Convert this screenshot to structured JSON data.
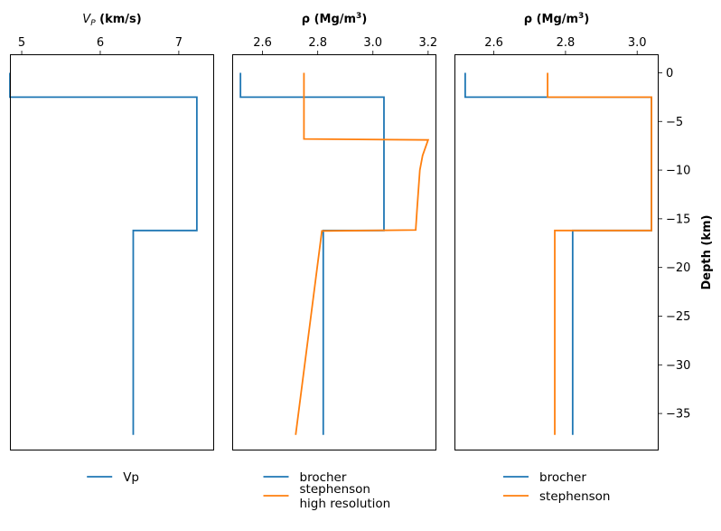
{
  "chart_data": [
    {
      "type": "line",
      "title_main": "V",
      "title_sub": "P",
      "title_rest": " (km/s)",
      "title_full": "V_P (km/s)",
      "xaxis_position": "top",
      "xlim": [
        4.85,
        7.45
      ],
      "ylim": [
        -38.8,
        1.9
      ],
      "xticks": [
        5,
        6,
        7
      ],
      "xtick_labels": [
        "5",
        "6",
        "7"
      ],
      "series": [
        {
          "name": "Vp",
          "color": "#1f77b4",
          "points": [
            [
              4.85,
              0
            ],
            [
              4.85,
              -2.5
            ],
            [
              7.23,
              -2.5
            ],
            [
              7.23,
              -16.2
            ],
            [
              6.42,
              -16.2
            ],
            [
              6.42,
              -37.2
            ]
          ]
        }
      ],
      "legend": {
        "placement": "below",
        "entries": [
          {
            "label": "Vp",
            "color": "#1f77b4"
          }
        ]
      }
    },
    {
      "type": "line",
      "title_main": "ρ (Mg/m",
      "title_sup": "3",
      "title_rest": ")",
      "title_full": "ρ (Mg/m^3)",
      "xaxis_position": "top",
      "xlim": [
        2.49,
        3.23
      ],
      "ylim": [
        -38.8,
        1.9
      ],
      "xticks": [
        2.6,
        2.8,
        3.0,
        3.2
      ],
      "xtick_labels": [
        "2.6",
        "2.8",
        "3.0",
        "3.2"
      ],
      "series": [
        {
          "name": "brocher",
          "color": "#1f77b4",
          "points": [
            [
              2.52,
              0
            ],
            [
              2.52,
              -2.5
            ],
            [
              3.04,
              -2.5
            ],
            [
              3.04,
              -16.2
            ],
            [
              2.82,
              -16.2
            ],
            [
              2.82,
              -37.2
            ]
          ]
        },
        {
          "name": "stephenson high resolution",
          "color": "#ff7f0e",
          "points": [
            [
              2.75,
              0
            ],
            [
              2.75,
              -6.8
            ],
            [
              3.2,
              -6.9
            ],
            [
              3.18,
              -8.5
            ],
            [
              3.17,
              -10.0
            ],
            [
              3.165,
              -12.0
            ],
            [
              3.16,
              -14.0
            ],
            [
              3.155,
              -16.15
            ],
            [
              2.815,
              -16.25
            ],
            [
              2.72,
              -37.2
            ]
          ]
        }
      ],
      "legend": {
        "placement": "below",
        "entries": [
          {
            "label": "brocher",
            "color": "#1f77b4"
          },
          {
            "label": "stephenson",
            "label_line2": "high resolution",
            "color": "#ff7f0e"
          }
        ]
      }
    },
    {
      "type": "line",
      "title_main": "ρ (Mg/m",
      "title_sup": "3",
      "title_rest": ")",
      "title_full": "ρ (Mg/m^3)",
      "xaxis_position": "top",
      "xlim": [
        2.49,
        3.06
      ],
      "ylim": [
        -38.8,
        1.9
      ],
      "xticks": [
        2.6,
        2.8,
        3.0
      ],
      "xtick_labels": [
        "2.6",
        "2.8",
        "3.0"
      ],
      "yaxis_position": "right",
      "ylabel": "Depth (km)",
      "yticks": [
        0,
        -5,
        -10,
        -15,
        -20,
        -25,
        -30,
        -35
      ],
      "ytick_labels": [
        "0",
        "−5",
        "−10",
        "−15",
        "−20",
        "−25",
        "−30",
        "−35"
      ],
      "series": [
        {
          "name": "brocher",
          "color": "#1f77b4",
          "points": [
            [
              2.52,
              0
            ],
            [
              2.52,
              -2.5
            ],
            [
              3.04,
              -2.5
            ],
            [
              3.04,
              -16.2
            ],
            [
              2.82,
              -16.2
            ],
            [
              2.82,
              -37.2
            ]
          ]
        },
        {
          "name": "stephenson",
          "color": "#ff7f0e",
          "points": [
            [
              2.75,
              0
            ],
            [
              2.75,
              -2.5
            ],
            [
              3.04,
              -2.5
            ],
            [
              3.04,
              -16.2
            ],
            [
              2.77,
              -16.2
            ],
            [
              2.77,
              -37.2
            ]
          ]
        }
      ],
      "legend": {
        "placement": "below",
        "entries": [
          {
            "label": "brocher",
            "color": "#1f77b4"
          },
          {
            "label": "stephenson",
            "color": "#ff7f0e"
          }
        ]
      }
    }
  ]
}
